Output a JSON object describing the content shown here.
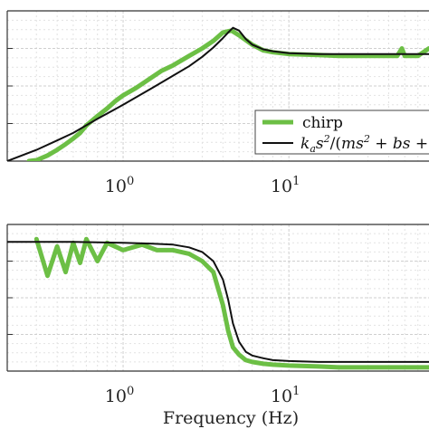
{
  "colors": {
    "chirp": "#6cbf45",
    "model": "#111111",
    "grid_major": "#cfcfcf",
    "grid_minor": "#e2e2e2",
    "axis": "#333333"
  },
  "chart_data": [
    {
      "type": "line",
      "panel": "magnitude",
      "xscale": "log",
      "xlim": [
        0.2,
        70
      ],
      "ylim": [
        0,
        8
      ],
      "grid": "on (major and minor, dashed)",
      "legend_placement": "bottom-right",
      "x_ticks": [
        1,
        10
      ],
      "x_tick_labels": [
        {
          "base": "10",
          "exp": "0"
        },
        {
          "base": "10",
          "exp": "1"
        }
      ],
      "legend_entries": [
        "chirp",
        "k_a s^2/(ms^2 + bs +"
      ],
      "legend_labels": {
        "chirp": "chirp",
        "model": "kas2/(ms2 + bs +"
      },
      "series": [
        {
          "name": "chirp",
          "x": [
            0.27,
            0.3,
            0.35,
            0.4,
            0.45,
            0.5,
            0.55,
            0.6,
            0.7,
            0.8,
            0.9,
            1.0,
            1.2,
            1.4,
            1.7,
            2.0,
            2.5,
            3.0,
            3.5,
            4.0,
            4.5,
            5.0,
            6.0,
            7.0,
            8.0,
            10.0,
            15.0,
            20.0,
            30.0,
            35.0,
            40.0,
            45.0,
            48.0,
            50.0,
            55.0,
            60.0,
            70.0
          ],
          "y": [
            0.0,
            0.05,
            0.3,
            0.6,
            0.9,
            1.2,
            1.5,
            1.9,
            2.4,
            2.8,
            3.2,
            3.5,
            3.9,
            4.3,
            4.8,
            5.1,
            5.6,
            6.0,
            6.4,
            6.85,
            6.95,
            6.7,
            6.2,
            5.9,
            5.8,
            5.7,
            5.65,
            5.6,
            5.6,
            5.6,
            5.6,
            5.6,
            6.0,
            5.6,
            5.6,
            5.6,
            6.0
          ]
        },
        {
          "name": "k_a s^2/(ms^2 + bs +",
          "x": [
            0.2,
            0.3,
            0.4,
            0.5,
            0.7,
            1.0,
            1.5,
            2.0,
            2.5,
            3.0,
            3.5,
            4.0,
            4.3,
            4.6,
            5.0,
            5.5,
            6.0,
            7.0,
            8.0,
            10.0,
            15.0,
            20.0,
            30.0,
            50.0,
            70.0
          ],
          "y": [
            0.0,
            0.6,
            1.1,
            1.5,
            2.25,
            3.0,
            3.9,
            4.55,
            5.05,
            5.55,
            6.05,
            6.55,
            6.85,
            7.1,
            6.95,
            6.5,
            6.2,
            5.95,
            5.85,
            5.75,
            5.7,
            5.7,
            5.7,
            5.7,
            5.7
          ]
        }
      ]
    },
    {
      "type": "line",
      "panel": "phase",
      "xscale": "log",
      "xlim": [
        0.2,
        70
      ],
      "ylim": [
        0,
        8
      ],
      "grid": "on (major and minor, dashed)",
      "x_ticks": [
        1,
        10
      ],
      "x_tick_labels": [
        {
          "base": "10",
          "exp": "0"
        },
        {
          "base": "10",
          "exp": "1"
        }
      ],
      "xlabel": "Frequency (Hz)",
      "series": [
        {
          "name": "chirp",
          "x": [
            0.3,
            0.35,
            0.4,
            0.45,
            0.5,
            0.55,
            0.6,
            0.7,
            0.8,
            1.0,
            1.3,
            1.6,
            2.0,
            2.5,
            3.0,
            3.5,
            3.8,
            4.0,
            4.3,
            4.6,
            5.0,
            5.5,
            6.0,
            7.0,
            8.0,
            10.0,
            15.0,
            20.0,
            30.0,
            35.0,
            40.0,
            50.0,
            60.0,
            70.0
          ],
          "y": [
            7.2,
            5.2,
            6.8,
            5.4,
            7.0,
            5.9,
            7.2,
            6.0,
            7.0,
            6.6,
            6.9,
            6.6,
            6.6,
            6.4,
            6.0,
            5.4,
            4.3,
            3.6,
            2.2,
            1.3,
            0.9,
            0.6,
            0.5,
            0.4,
            0.35,
            0.3,
            0.25,
            0.2,
            0.2,
            0.2,
            0.2,
            0.2,
            0.2,
            0.2
          ]
        },
        {
          "name": "model",
          "x": [
            0.2,
            0.5,
            1.0,
            1.5,
            2.0,
            2.5,
            3.0,
            3.5,
            4.0,
            4.3,
            4.6,
            5.0,
            5.5,
            6.0,
            7.0,
            8.0,
            10.0,
            15.0,
            20.0,
            30.0,
            50.0,
            70.0
          ],
          "y": [
            7.05,
            7.05,
            7.0,
            6.95,
            6.9,
            6.75,
            6.5,
            6.0,
            5.0,
            3.9,
            2.6,
            1.6,
            1.05,
            0.85,
            0.7,
            0.6,
            0.55,
            0.5,
            0.5,
            0.5,
            0.5,
            0.5
          ]
        }
      ]
    }
  ]
}
